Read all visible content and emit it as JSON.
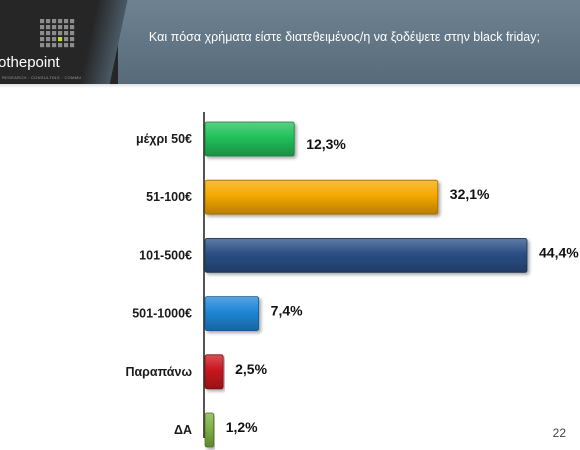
{
  "header": {
    "title": "Και πόσα χρήματα είστε διατεθειμένος/η να ξοδέψετε στην black friday;",
    "logo_text": "othepoint",
    "logo_subtitle": "RESEARCH · CONSULTING · COMMUNICATIONS"
  },
  "page_number": "22",
  "colors": {
    "header_bg": "#607382",
    "green": "#22c05a",
    "orange": "#f5a800",
    "navy": "#2b4f86",
    "blue": "#1f86d6",
    "red": "#c8161d",
    "olive": "#7db043",
    "logo_accent": "#c5d62a"
  },
  "chart_data": {
    "type": "bar",
    "orientation": "horizontal",
    "title": "",
    "xlabel": "",
    "ylabel": "",
    "categories": [
      "μέχρι 50€",
      "51-100€",
      "101-500€",
      "501-1000€",
      "Παραπάνω",
      "ΔΑ"
    ],
    "values": [
      12.3,
      32.1,
      44.4,
      7.4,
      2.5,
      1.2
    ],
    "data_labels": [
      "12,3%",
      "32,1%",
      "44,4%",
      "7,4%",
      "2,5%",
      "1,2%"
    ],
    "bar_colors": [
      "#22c05a",
      "#f5a800",
      "#2b4f86",
      "#1f86d6",
      "#c8161d",
      "#7db043"
    ],
    "xlim": [
      0,
      44.4
    ],
    "grid": false,
    "legend": "none"
  }
}
